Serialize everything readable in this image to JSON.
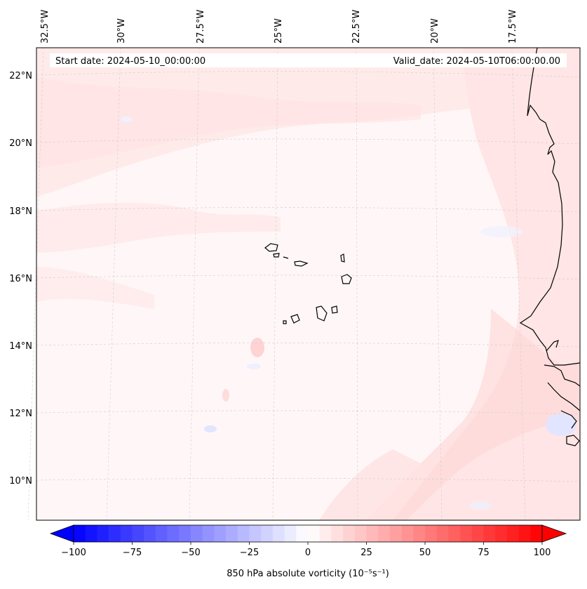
{
  "map": {
    "start_date": "Start date: 2024-05-10_00:00:00",
    "valid_date": "Valid_date: 2024-05-10T06:00:00.00",
    "lon_labels": [
      "32.5°W",
      "30°W",
      "27.5°W",
      "25°W",
      "22.5°W",
      "20°W",
      "17.5°W"
    ],
    "lat_labels": [
      "22°N",
      "20°N",
      "18°N",
      "16°N",
      "14°N",
      "12°N",
      "10°N"
    ]
  },
  "colorbar": {
    "label": "850 hPa absolute vorticity (10⁻⁵s⁻¹)",
    "ticks": [
      "−100",
      "−75",
      "−50",
      "−25",
      "0",
      "25",
      "50",
      "75",
      "100"
    ],
    "min": -100,
    "max": 100,
    "neg_color": "#0000ff",
    "pos_color": "#ff0000",
    "mid_color": "#ffffff"
  },
  "colors": {
    "coastline": "#000000",
    "gridline": "#cccccc",
    "field_base": "#fff6f6",
    "field_pink": "#ffe4e4",
    "field_blue": "#eef0ff"
  }
}
